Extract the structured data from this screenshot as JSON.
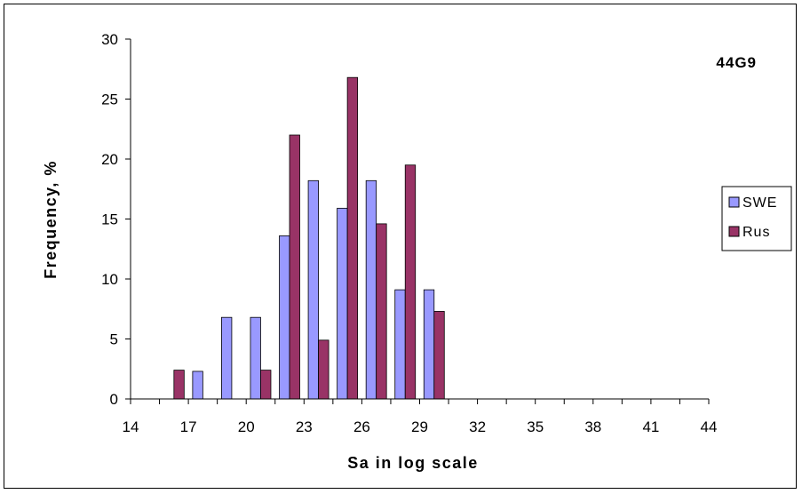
{
  "chart_data": {
    "type": "bar",
    "annotation": "44G9",
    "xlabel": "Sa in log scale",
    "ylabel": "Frequency, %",
    "x_tick_labels": [
      "14",
      "17",
      "20",
      "23",
      "26",
      "29",
      "32",
      "35",
      "38",
      "41",
      "44"
    ],
    "y_tick_labels": [
      "0",
      "5",
      "10",
      "15",
      "20",
      "25",
      "30"
    ],
    "ylim": [
      0,
      30
    ],
    "grid": false,
    "legend_position": "right",
    "bins": [
      "14-15.5",
      "15.5-17",
      "17-18.5",
      "18.5-20",
      "20-21.5",
      "21.5-23",
      "23-24.5",
      "24.5-26",
      "26-27.5",
      "27.5-29",
      "29-30.5",
      "30.5-32",
      "32-33.5",
      "33.5-35",
      "35-36.5",
      "36.5-38",
      "38-39.5",
      "39.5-41",
      "41-42.5",
      "42.5-44"
    ],
    "series": [
      {
        "name": "SWE",
        "color": "#9999ff",
        "values": [
          0,
          0,
          2.3,
          6.8,
          6.8,
          13.6,
          18.2,
          15.9,
          18.2,
          9.1,
          9.1,
          0,
          0,
          0,
          0,
          0,
          0,
          0,
          0,
          0
        ]
      },
      {
        "name": "Rus",
        "color": "#993366",
        "values": [
          0,
          2.4,
          0,
          0,
          2.4,
          22.0,
          4.9,
          26.8,
          14.6,
          19.5,
          7.3,
          0,
          0,
          0,
          0,
          0,
          0,
          0,
          0,
          0
        ]
      }
    ]
  }
}
